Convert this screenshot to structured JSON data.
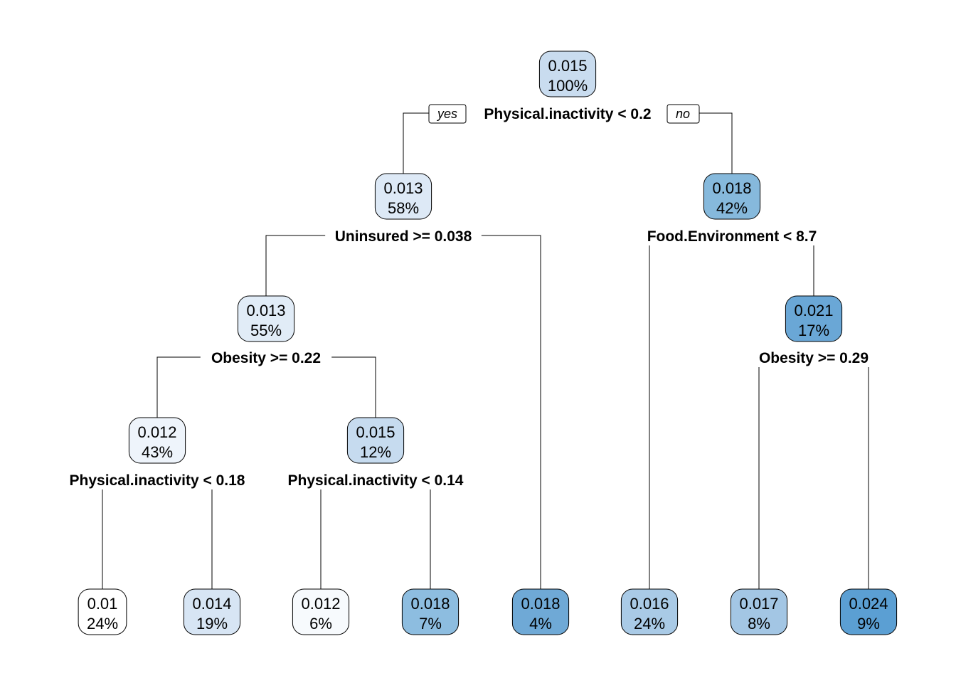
{
  "tree": {
    "root_branch_labels": {
      "yes": "yes",
      "no": "no"
    },
    "nodes": [
      {
        "id": "root",
        "value": "0.015",
        "percent": "100%",
        "color": "#c9dcef",
        "split": "Physical.inactivity < 0.2"
      },
      {
        "id": "n2",
        "value": "0.013",
        "percent": "58%",
        "color": "#dde9f6",
        "split": "Uninsured >= 0.038"
      },
      {
        "id": "n3",
        "value": "0.018",
        "percent": "42%",
        "color": "#86b9dc",
        "split": "Food.Environment < 8.7"
      },
      {
        "id": "n4",
        "value": "0.013",
        "percent": "55%",
        "color": "#e1ecf7",
        "split": "Obesity >= 0.22"
      },
      {
        "id": "n5",
        "value": "0.018",
        "percent": "4%",
        "color": "#6fa9d6",
        "split": ""
      },
      {
        "id": "n6",
        "value": "0.016",
        "percent": "24%",
        "color": "#a9cae6",
        "split": ""
      },
      {
        "id": "n7",
        "value": "0.021",
        "percent": "17%",
        "color": "#6aa7d6",
        "split": "Obesity >= 0.29"
      },
      {
        "id": "n8",
        "value": "0.012",
        "percent": "43%",
        "color": "#eef4fb",
        "split": "Physical.inactivity < 0.18"
      },
      {
        "id": "n9",
        "value": "0.015",
        "percent": "12%",
        "color": "#c6dbef",
        "split": "Physical.inactivity < 0.14"
      },
      {
        "id": "n14",
        "value": "0.017",
        "percent": "8%",
        "color": "#a3c6e4",
        "split": ""
      },
      {
        "id": "n15",
        "value": "0.024",
        "percent": "9%",
        "color": "#5b9fd3",
        "split": ""
      },
      {
        "id": "n16",
        "value": "0.01",
        "percent": "24%",
        "color": "#ffffff",
        "split": ""
      },
      {
        "id": "n17",
        "value": "0.014",
        "percent": "19%",
        "color": "#d7e5f4",
        "split": ""
      },
      {
        "id": "n18",
        "value": "0.012",
        "percent": "6%",
        "color": "#f7fafd",
        "split": ""
      },
      {
        "id": "n19",
        "value": "0.018",
        "percent": "7%",
        "color": "#8dbde0",
        "split": ""
      }
    ],
    "edges": [
      [
        "root",
        "n2"
      ],
      [
        "root",
        "n3"
      ],
      [
        "n2",
        "n4"
      ],
      [
        "n2",
        "n5"
      ],
      [
        "n3",
        "n6"
      ],
      [
        "n3",
        "n7"
      ],
      [
        "n4",
        "n8"
      ],
      [
        "n4",
        "n9"
      ],
      [
        "n7",
        "n14"
      ],
      [
        "n7",
        "n15"
      ],
      [
        "n8",
        "n16"
      ],
      [
        "n8",
        "n17"
      ],
      [
        "n9",
        "n18"
      ],
      [
        "n9",
        "n19"
      ]
    ]
  }
}
